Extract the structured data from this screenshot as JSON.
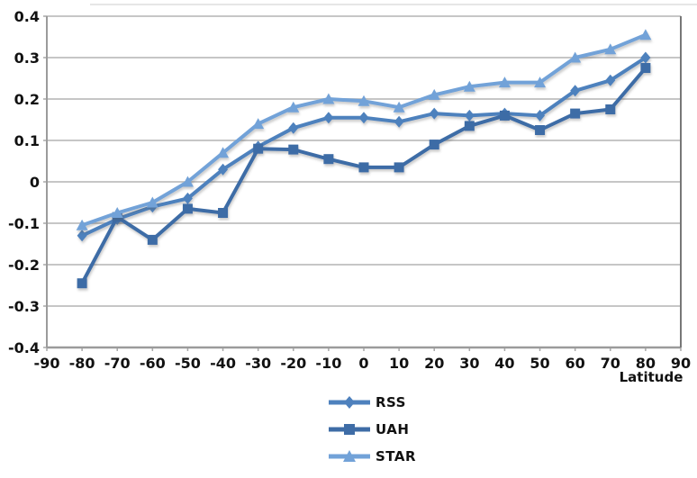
{
  "chart_data": {
    "type": "line",
    "x": [
      -80,
      -70,
      -60,
      -50,
      -40,
      -30,
      -20,
      -10,
      0,
      10,
      20,
      30,
      40,
      50,
      60,
      70,
      80
    ],
    "series": [
      {
        "name": "RSS",
        "marker": "diamond",
        "color": "#4E81BD",
        "values": [
          -0.13,
          -0.09,
          -0.06,
          -0.04,
          0.03,
          0.085,
          0.13,
          0.155,
          0.155,
          0.145,
          0.165,
          0.16,
          0.165,
          0.16,
          0.22,
          0.245,
          0.3
        ]
      },
      {
        "name": "UAH",
        "marker": "square",
        "color": "#3E6CA6",
        "values": [
          -0.245,
          -0.085,
          -0.14,
          -0.065,
          -0.075,
          0.08,
          0.078,
          0.055,
          0.035,
          0.035,
          0.09,
          0.135,
          0.16,
          0.125,
          0.165,
          0.175,
          0.275
        ]
      },
      {
        "name": "STAR",
        "marker": "triangle",
        "color": "#72A2D8",
        "values": [
          -0.105,
          -0.075,
          -0.05,
          0.0,
          0.07,
          0.14,
          0.18,
          0.2,
          0.195,
          0.18,
          0.21,
          0.23,
          0.24,
          0.24,
          0.3,
          0.32,
          0.355
        ]
      }
    ],
    "xlabel": "Latitude",
    "xlim": [
      -90,
      90
    ],
    "xtick_step": 10,
    "ylim": [
      -0.4,
      0.4
    ],
    "ytick_step": 0.1,
    "grid": true,
    "legend_position": "bottom-center"
  },
  "colors": {
    "gridline": "#c6c6c6",
    "axis": "#9b9b9b",
    "right_border": "#777777",
    "tick": "#a8a8a8",
    "label_text": "#111111",
    "top_border": "#dddddd"
  }
}
